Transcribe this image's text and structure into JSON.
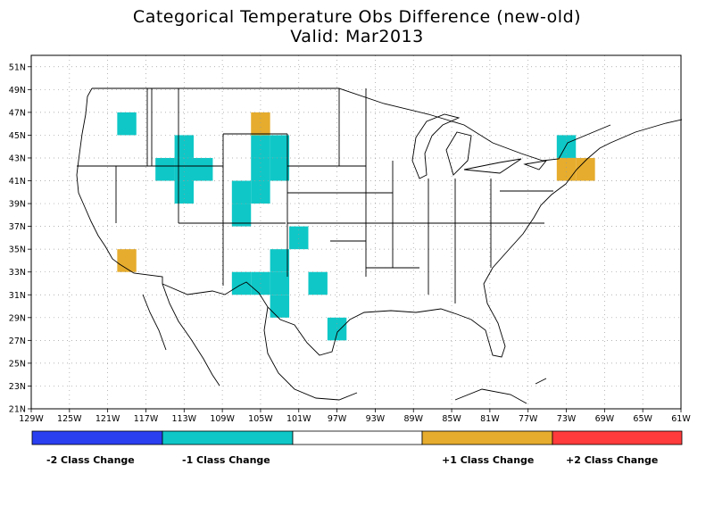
{
  "title": "Categorical Temperature Obs Difference (new-old)",
  "subtitle": "Valid: Mar2013",
  "colors": {
    "minus2": "#2a3ff0",
    "minus1": "#0fc7c7",
    "neutral": "#ffffff",
    "plus1": "#e6ac2d",
    "plus2": "#ff3b3b",
    "grid": "#9a9a9a",
    "border": "#000000"
  },
  "axes": {
    "lat_labels": [
      "51N",
      "49N",
      "47N",
      "45N",
      "43N",
      "41N",
      "39N",
      "37N",
      "35N",
      "33N",
      "31N",
      "29N",
      "27N",
      "25N",
      "23N",
      "21N"
    ],
    "lon_labels": [
      "129W",
      "125W",
      "121W",
      "117W",
      "113W",
      "109W",
      "105W",
      "101W",
      "97W",
      "93W",
      "89W",
      "85W",
      "81W",
      "77W",
      "73W",
      "69W",
      "65W",
      "61W"
    ]
  },
  "legend": {
    "labels": [
      "-2 Class Change",
      "-1 Class Change",
      "+1 Class Change",
      "+2 Class Change"
    ]
  },
  "map_data": {
    "type": "grid-categorical",
    "cell_size_deg": 2,
    "cells": [
      {
        "lon": -119,
        "lat": 46,
        "cat": -1
      },
      {
        "lon": -113,
        "lat": 44,
        "cat": -1
      },
      {
        "lon": -115,
        "lat": 42,
        "cat": -1
      },
      {
        "lon": -113,
        "lat": 42,
        "cat": -1
      },
      {
        "lon": -111,
        "lat": 42,
        "cat": -1
      },
      {
        "lon": -113,
        "lat": 40,
        "cat": -1
      },
      {
        "lon": -105,
        "lat": 44,
        "cat": -1
      },
      {
        "lon": -105,
        "lat": 42,
        "cat": -1
      },
      {
        "lon": -103,
        "lat": 44,
        "cat": -1
      },
      {
        "lon": -103,
        "lat": 42,
        "cat": -1
      },
      {
        "lon": -107,
        "lat": 40,
        "cat": -1
      },
      {
        "lon": -105,
        "lat": 40,
        "cat": -1
      },
      {
        "lon": -107,
        "lat": 38,
        "cat": -1
      },
      {
        "lon": -101,
        "lat": 36,
        "cat": -1
      },
      {
        "lon": -103,
        "lat": 34,
        "cat": -1
      },
      {
        "lon": -107,
        "lat": 32,
        "cat": -1
      },
      {
        "lon": -105,
        "lat": 32,
        "cat": -1
      },
      {
        "lon": -103,
        "lat": 32,
        "cat": -1
      },
      {
        "lon": -103,
        "lat": 30,
        "cat": -1
      },
      {
        "lon": -99,
        "lat": 32,
        "cat": -1
      },
      {
        "lon": -97,
        "lat": 28,
        "cat": -1
      },
      {
        "lon": -73,
        "lat": 44,
        "cat": -1
      },
      {
        "lon": -105,
        "lat": 46,
        "cat": 1
      },
      {
        "lon": -119,
        "lat": 34,
        "cat": 1
      },
      {
        "lon": -73,
        "lat": 42,
        "cat": 1
      },
      {
        "lon": -71,
        "lat": 42,
        "cat": 1
      }
    ]
  }
}
